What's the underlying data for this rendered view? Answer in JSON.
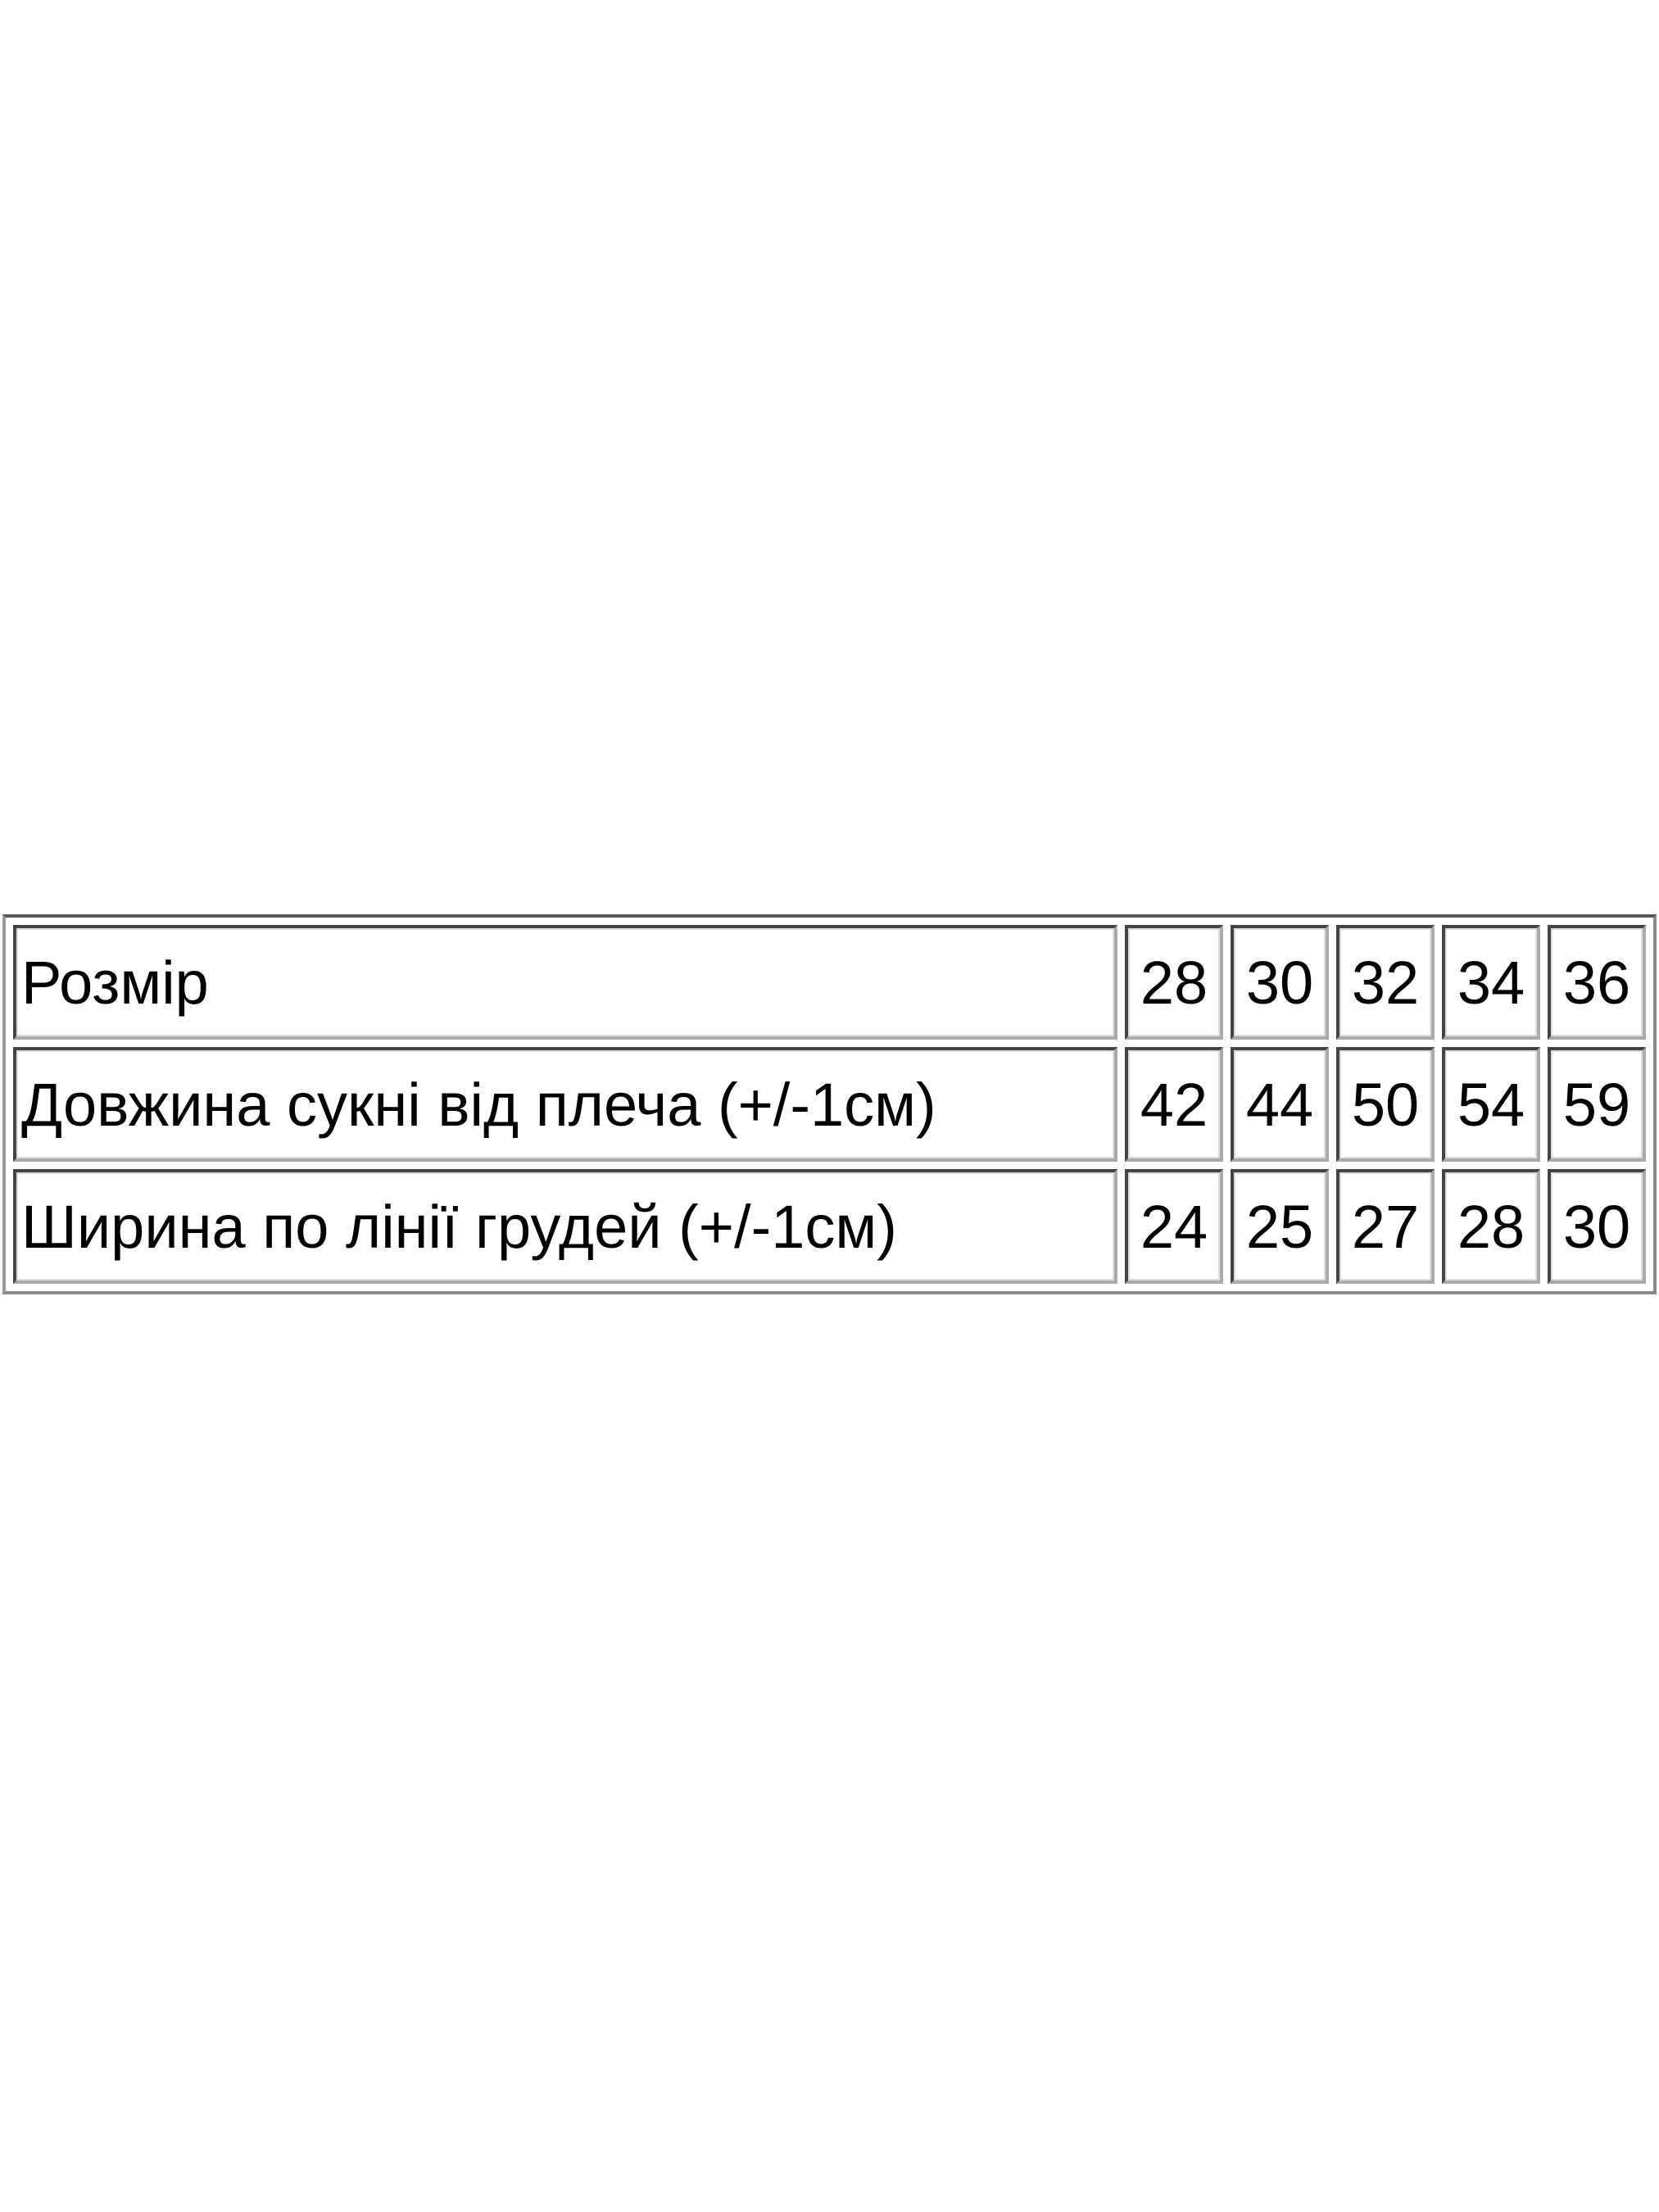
{
  "size_table": {
    "rows": [
      {
        "label": "Розмір",
        "values": [
          "28",
          "30",
          "32",
          "34",
          "36"
        ]
      },
      {
        "label": "Довжина сукні від плеча (+/-1см)",
        "values": [
          "42",
          "44",
          "50",
          "54",
          "59"
        ]
      },
      {
        "label": "Ширина по лінії грудей (+/-1см)",
        "values": [
          "24",
          "25",
          "27",
          "28",
          "30"
        ]
      }
    ]
  }
}
